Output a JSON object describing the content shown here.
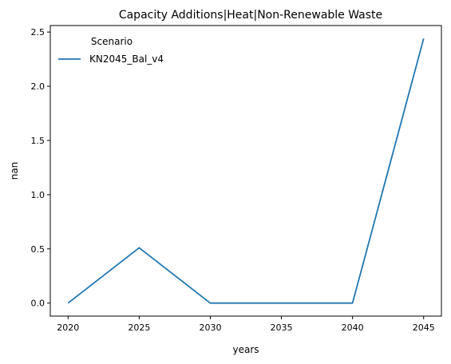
{
  "chart_data": {
    "type": "line",
    "title": "Capacity Additions|Heat|Non-Renewable Waste",
    "xlabel": "years",
    "ylabel": "nan",
    "x": [
      2020,
      2025,
      2030,
      2035,
      2040,
      2045
    ],
    "series": [
      {
        "name": "KN2045_Bal_v4",
        "color": "#1f77b4",
        "values": [
          0.0,
          0.51,
          0.0,
          0.0,
          0.0,
          2.44
        ]
      }
    ],
    "xlim": [
      2018.75,
      2046.25
    ],
    "ylim": [
      -0.12,
      2.56
    ],
    "xticks": [
      2020,
      2025,
      2030,
      2035,
      2040,
      2045
    ],
    "yticks": [
      0.0,
      0.5,
      1.0,
      1.5,
      2.0,
      2.5
    ],
    "ytick_labels": [
      "0.0",
      "0.5",
      "1.0",
      "1.5",
      "2.0",
      "2.5"
    ],
    "legend": {
      "title": "Scenario",
      "position": "top-left"
    },
    "grid": false
  }
}
